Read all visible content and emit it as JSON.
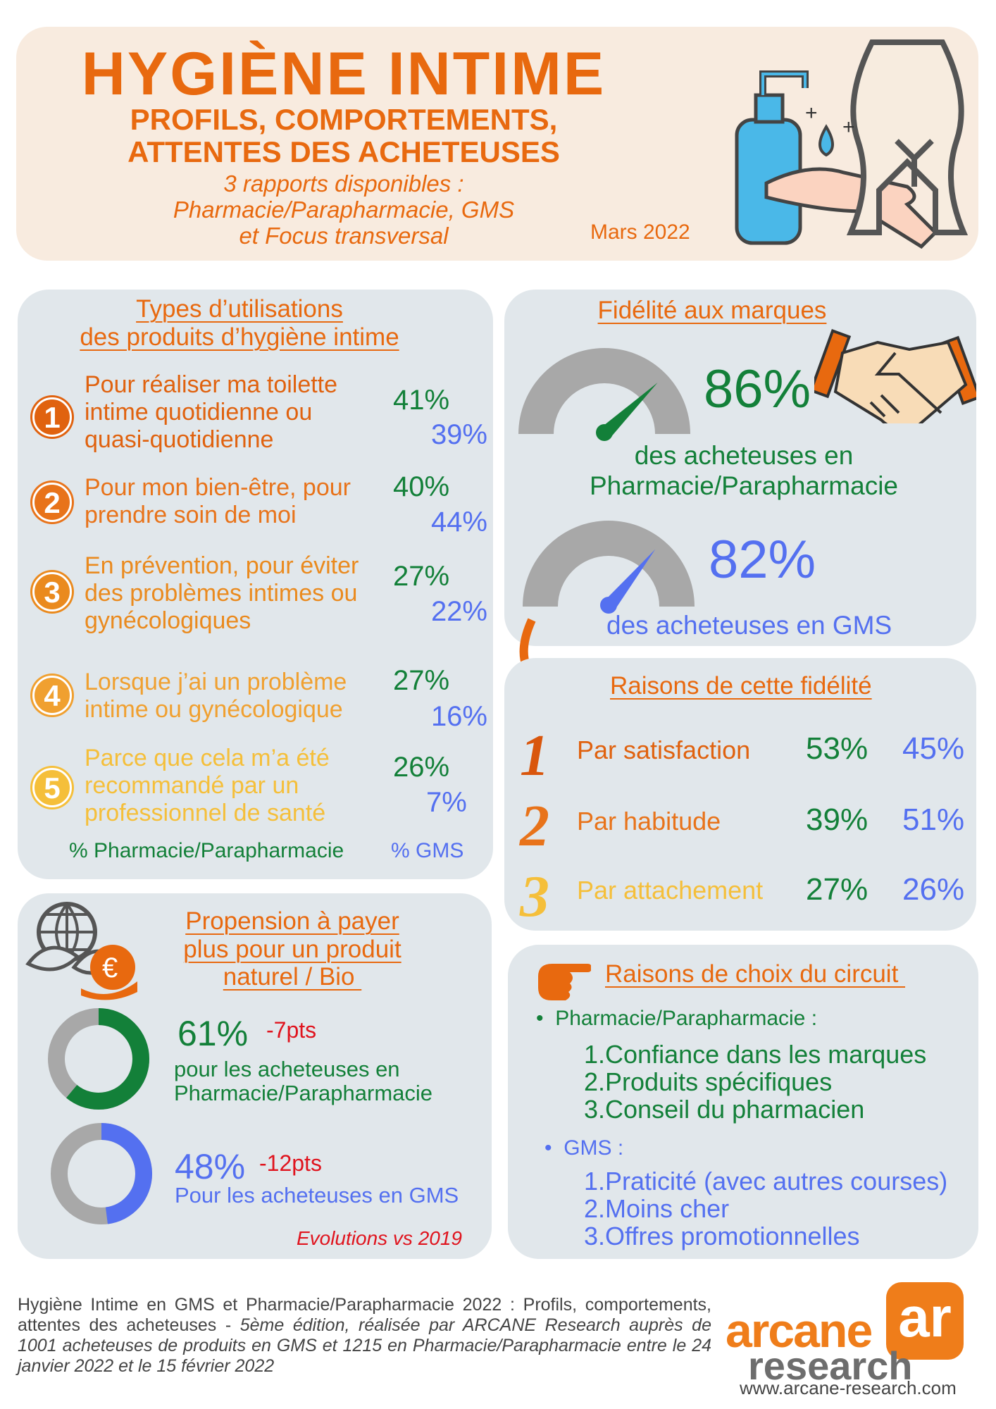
{
  "header": {
    "title": "HYGIÈNE INTIME",
    "subtitle_1": "PROFILS, COMPORTEMENTS,",
    "subtitle_2": "ATTENTES DES ACHETEUSES",
    "reports_1": "3 rapports disponibles :",
    "reports_2": "Pharmacie/Parapharmacie, GMS",
    "reports_3": "et Focus transversal",
    "date": "Mars 2022"
  },
  "colors": {
    "orange": "#e8690f",
    "green": "#138039",
    "blue": "#5470f0",
    "red": "#e0141e",
    "panel": "#e1e7eb",
    "header_bg": "#f8ebdf"
  },
  "usages": {
    "title_1": "Types d’utilisations",
    "title_2": "des produits d’hygiène intime",
    "items": [
      {
        "n": "1",
        "l1": "Pour réaliser ma toilette",
        "l2": "intime quotidienne ou",
        "l3": "quasi-quotidienne",
        "pharma": "41%",
        "gms": "39%"
      },
      {
        "n": "2",
        "l1": "Pour mon bien-être, pour",
        "l2": "prendre soin de moi",
        "pharma": "40%",
        "gms": "44%"
      },
      {
        "n": "3",
        "l1": "En prévention, pour éviter",
        "l2": "des problèmes intimes ou",
        "l3": "gynécologiques",
        "pharma": "27%",
        "gms": "22%"
      },
      {
        "n": "4",
        "l1": "Lorsque j’ai un problème",
        "l2": "intime ou gynécologique",
        "pharma": "27%",
        "gms": "16%"
      },
      {
        "n": "5",
        "l1": "Parce que cela m’a été",
        "l2": "recommandé par un",
        "l3": "professionnel de santé",
        "pharma": "26%",
        "gms": "7%"
      }
    ],
    "legend_pharma": "% Pharmacie/Parapharmacie",
    "legend_gms": "% GMS"
  },
  "fidelite": {
    "title": "Fidélité aux marques",
    "pharma_value": "86%",
    "pharma_label_1": "des  acheteuses en",
    "pharma_label_2": "Pharmacie/Parapharmacie",
    "gms_value": "82%",
    "gms_label": "des  acheteuses en GMS",
    "pharma_level": 86,
    "gms_level": 82
  },
  "raisons": {
    "title": "Raisons de cette fidélité",
    "rows": [
      {
        "n": "1",
        "label": "Par satisfaction",
        "pharma": "53%",
        "gms": "45%"
      },
      {
        "n": "2",
        "label": "Par habitude",
        "pharma": "39%",
        "gms": "51%"
      },
      {
        "n": "3",
        "label": "Par attachement",
        "pharma": "27%",
        "gms": "26%"
      }
    ]
  },
  "propension": {
    "title_1": "Propension à payer",
    "title_2": "plus pour un produit",
    "title_3": "naturel / Bio ",
    "pharma_value": "61%",
    "pharma_delta": "-7pts",
    "pharma_label_1": "pour les acheteuses en",
    "pharma_label_2": "Pharmacie/Parapharmacie",
    "gms_value": "48%",
    "gms_delta": "-12pts",
    "gms_label": "Pour les acheteuses en GMS",
    "note": "Evolutions vs 2019",
    "pharma_fraction": 0.61,
    "gms_fraction": 0.48
  },
  "circuit": {
    "title": "Raisons de choix du circuit ",
    "pharma_head": "Pharmacie/Parapharmacie :",
    "pharma_items": [
      "Confiance dans les marques",
      "Produits spécifiques",
      "Conseil du pharmacien"
    ],
    "gms_head": "GMS :",
    "gms_items": [
      "Praticité (avec autres courses)",
      "Moins cher",
      "Offres promotionnelles"
    ]
  },
  "footer": {
    "text_1": "Hygiène Intime en GMS et Pharmacie/Parapharmacie 2022 : Profils, comportements, attentes des acheteuses - ",
    "text_2": "5ème édition, réalisée par ARCANE Research auprès de 1001 acheteuses de produits en GMS et 1215 en Pharmacie/Parapharmacie  entre le 24 janvier 2022 et le 15 février 2022",
    "logo_1": "arcane",
    "logo_2": "research",
    "logo_mark": "ar",
    "url": "www.arcane-research.com"
  }
}
